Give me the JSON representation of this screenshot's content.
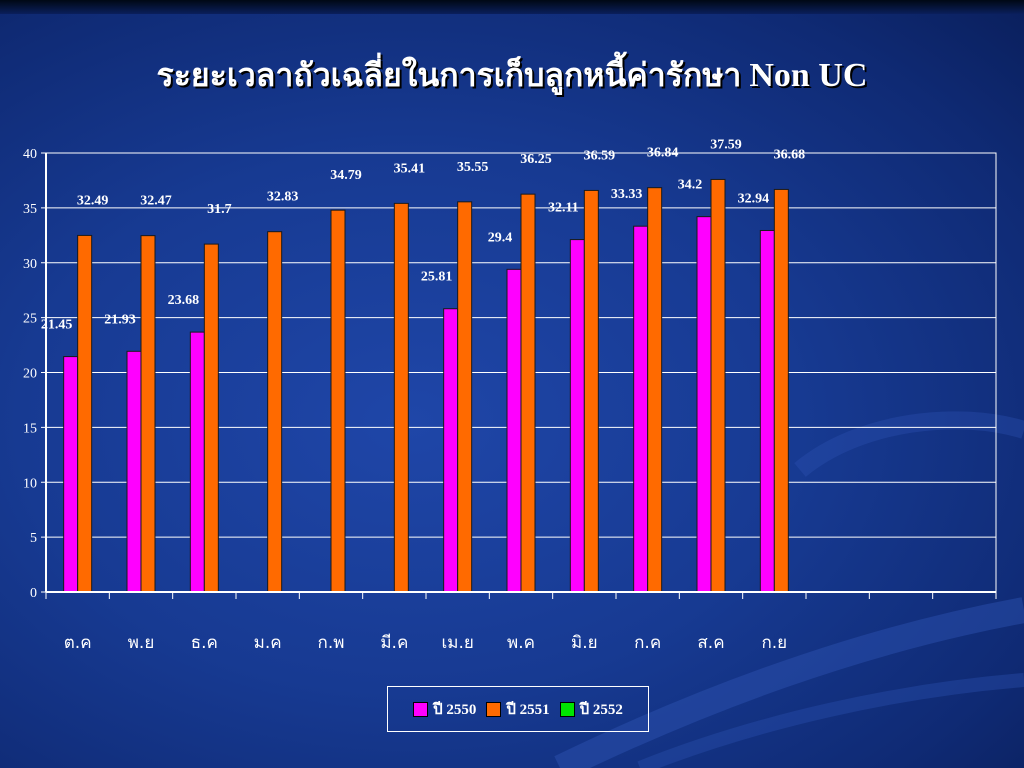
{
  "title_thai": "ระยะเวลาถัวเฉลี่ยในการเก็บลูกหนี้ค่ารักษา",
  "title_latin": "Non UC",
  "colors": {
    "series_2550": "#ff00ff",
    "series_2551": "#ff6a00",
    "series_2552": "#00e600",
    "grid": "#ffffff",
    "text": "#ffffff"
  },
  "chart_data": {
    "type": "bar",
    "title": "ระยะเวลาถัวเฉลี่ยในการเก็บลูกหนี้ค่ารักษา Non UC",
    "categories": [
      "ต.ค",
      "พ.ย",
      "ธ.ค",
      "ม.ค",
      "ก.พ",
      "มี.ค",
      "เม.ย",
      "พ.ค",
      "มิ.ย",
      "ก.ค",
      "ส.ค",
      "ก.ย"
    ],
    "category_slots": 15,
    "series": [
      {
        "name": "ปี 2550",
        "values": [
          21.45,
          21.93,
          23.68,
          null,
          null,
          null,
          25.81,
          29.4,
          32.11,
          33.33,
          34.2,
          32.94
        ]
      },
      {
        "name": "ปี 2551",
        "values": [
          32.49,
          32.47,
          31.7,
          32.83,
          34.79,
          35.41,
          35.55,
          36.25,
          36.59,
          36.84,
          37.59,
          36.68
        ]
      },
      {
        "name": "ปี 2552",
        "values": [
          null,
          null,
          null,
          null,
          null,
          null,
          null,
          null,
          null,
          null,
          null,
          null
        ]
      }
    ],
    "y_ticks": [
      "0",
      "5",
      "10",
      "15",
      "20",
      "25",
      "30",
      "35",
      "40"
    ],
    "ylim": [
      0,
      40
    ],
    "grid": true,
    "legend": "bottom-center"
  }
}
